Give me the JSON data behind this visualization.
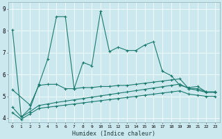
{
  "xlabel": "Humidex (Indice chaleur)",
  "bg_color": "#cce8ef",
  "grid_color": "#b0d4dc",
  "line_color": "#1a7a6e",
  "xlim": [
    -0.5,
    23.5
  ],
  "ylim": [
    3.8,
    9.3
  ],
  "xticks": [
    0,
    1,
    2,
    3,
    4,
    5,
    6,
    7,
    8,
    9,
    10,
    11,
    12,
    13,
    14,
    15,
    16,
    17,
    18,
    19,
    20,
    21,
    22,
    23
  ],
  "yticks": [
    4,
    5,
    6,
    7,
    8,
    9
  ],
  "series1_x": [
    0,
    1,
    2,
    3,
    4,
    5,
    6,
    7,
    8,
    9,
    10,
    11,
    12,
    13,
    14,
    15,
    16,
    17,
    18,
    19,
    20,
    21,
    22,
    23
  ],
  "series1_y": [
    8.05,
    4.05,
    4.45,
    5.55,
    6.7,
    8.65,
    8.65,
    5.35,
    6.55,
    6.4,
    8.9,
    7.05,
    7.25,
    7.1,
    7.1,
    7.35,
    7.5,
    6.15,
    5.95,
    5.5,
    5.4,
    5.45,
    5.2,
    5.2
  ],
  "series2_x": [
    0,
    2,
    3,
    4,
    5,
    6,
    7,
    8,
    9,
    10,
    11,
    12,
    13,
    14,
    15,
    16,
    17,
    18,
    19,
    20,
    21,
    22,
    23
  ],
  "series2_y": [
    5.3,
    4.6,
    5.5,
    5.55,
    5.55,
    5.35,
    5.35,
    5.4,
    5.4,
    5.45,
    5.45,
    5.5,
    5.5,
    5.55,
    5.6,
    5.65,
    5.7,
    5.75,
    5.8,
    5.35,
    5.35,
    5.2,
    5.2
  ],
  "series3_x": [
    0,
    1,
    2,
    3,
    4,
    5,
    6,
    7,
    8,
    9,
    10,
    11,
    12,
    13,
    14,
    15,
    16,
    17,
    18,
    19,
    20,
    21,
    22,
    23
  ],
  "series3_y": [
    4.5,
    4.05,
    4.3,
    4.58,
    4.65,
    4.72,
    4.78,
    4.84,
    4.9,
    4.96,
    5.02,
    5.08,
    5.14,
    5.2,
    5.26,
    5.32,
    5.38,
    5.44,
    5.5,
    5.56,
    5.35,
    5.28,
    5.18,
    5.18
  ],
  "series4_x": [
    0,
    1,
    2,
    3,
    4,
    5,
    6,
    7,
    8,
    9,
    10,
    11,
    12,
    13,
    14,
    15,
    16,
    17,
    18,
    19,
    20,
    21,
    22,
    23
  ],
  "series4_y": [
    4.25,
    3.95,
    4.2,
    4.45,
    4.5,
    4.55,
    4.6,
    4.65,
    4.7,
    4.75,
    4.8,
    4.85,
    4.9,
    4.95,
    5.0,
    5.05,
    5.1,
    5.15,
    5.2,
    5.25,
    5.1,
    5.05,
    5.0,
    5.0
  ]
}
